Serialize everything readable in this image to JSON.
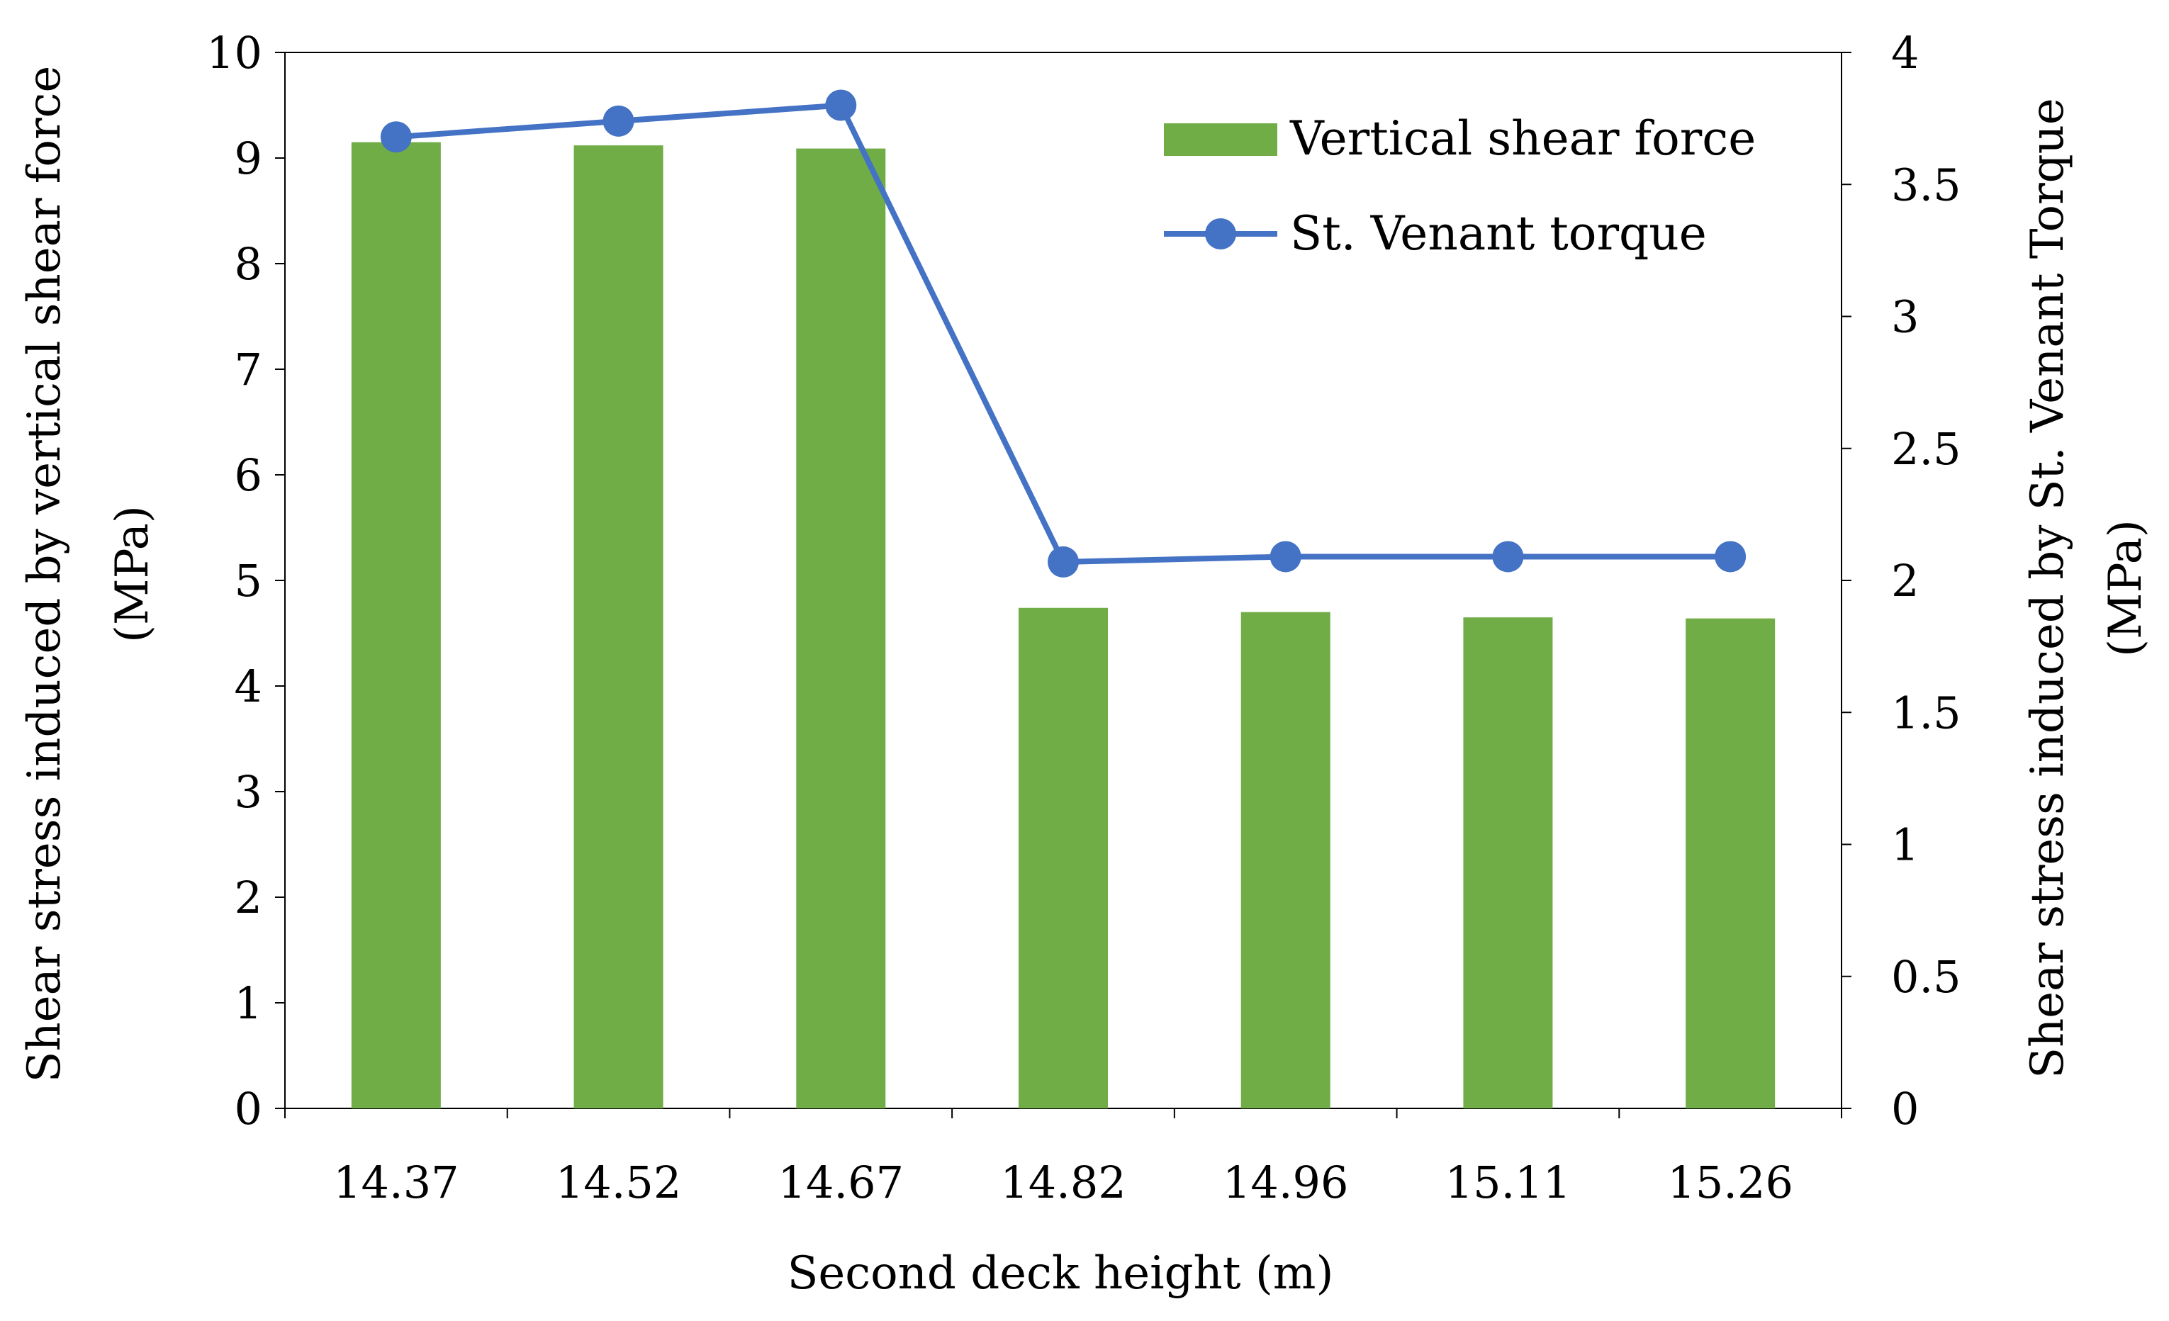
{
  "colors": {
    "bar": "#70AD47",
    "line": "#4472C4",
    "axis": "#000000",
    "background": "#ffffff"
  },
  "chart_data": {
    "type": "bar",
    "categories": [
      "14.37",
      "14.52",
      "14.67",
      "14.82",
      "14.96",
      "15.11",
      "15.26"
    ],
    "xlabel": "Second deck height (m)",
    "ylabel_left": [
      "Shear stress induced by vertical shear force",
      "(MPa)"
    ],
    "ylabel_right": [
      "Shear stress induced by St. Venant Torque",
      "(MPa)"
    ],
    "ylim_left": [
      0,
      10
    ],
    "yticks_left": [
      "0",
      "1",
      "2",
      "3",
      "4",
      "5",
      "6",
      "7",
      "8",
      "9",
      "10"
    ],
    "ylim_right": [
      0,
      4
    ],
    "yticks_right": [
      "0",
      "0.5",
      "1",
      "1.5",
      "2",
      "2.5",
      "3",
      "3.5",
      "4"
    ],
    "grid": false,
    "legend_position": "top-right",
    "series": [
      {
        "name": "Vertical shear force",
        "type": "bar",
        "axis": "left",
        "values": [
          9.15,
          9.12,
          9.09,
          4.74,
          4.7,
          4.65,
          4.64
        ]
      },
      {
        "name": "St. Venant torque",
        "type": "line",
        "axis": "right",
        "marker": "circle",
        "values": [
          3.68,
          3.74,
          3.8,
          2.07,
          2.09,
          2.09,
          2.09
        ]
      }
    ]
  }
}
